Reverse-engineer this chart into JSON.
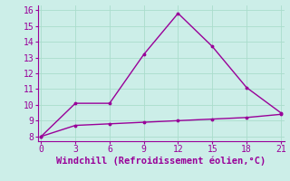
{
  "line1_x": [
    0,
    3,
    6,
    9,
    12,
    15,
    18,
    21
  ],
  "line1_y": [
    8.0,
    10.1,
    10.1,
    13.2,
    15.8,
    13.7,
    11.1,
    9.5
  ],
  "line2_x": [
    0,
    3,
    6,
    9,
    12,
    15,
    18,
    21
  ],
  "line2_y": [
    8.0,
    8.7,
    8.8,
    8.9,
    9.0,
    9.1,
    9.2,
    9.4
  ],
  "line_color": "#990099",
  "xlabel": "Windchill (Refroidissement éolien,°C)",
  "xticks": [
    0,
    3,
    6,
    9,
    12,
    15,
    18,
    21
  ],
  "yticks": [
    8,
    9,
    10,
    11,
    12,
    13,
    14,
    15,
    16
  ],
  "xlim": [
    -0.3,
    21.3
  ],
  "ylim": [
    7.7,
    16.3
  ],
  "bg_color": "#cceee8",
  "grid_color": "#aaddcc",
  "spine_color": "#990099",
  "xlabel_color": "#990099",
  "tick_color": "#990099",
  "xlabel_fontsize": 7.5,
  "tick_fontsize": 7.0,
  "linewidth": 1.0,
  "markersize": 3.5
}
